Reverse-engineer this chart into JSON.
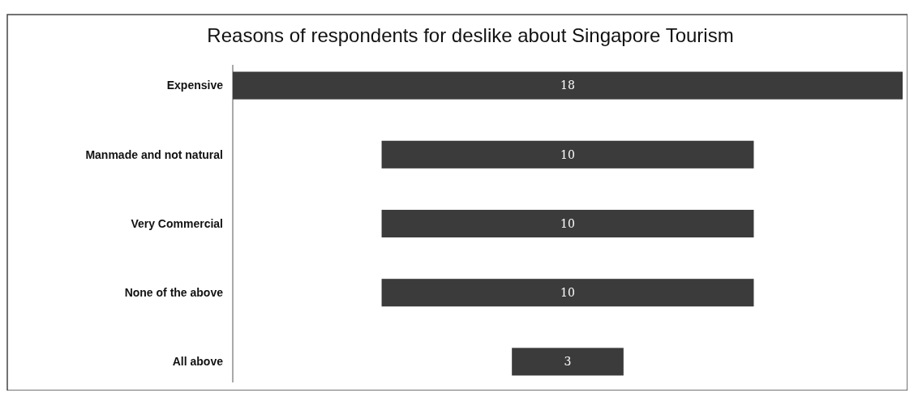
{
  "chart_data": {
    "type": "other",
    "title": "Reasons of respondents for deslike about Singapore Tourism",
    "categories": [
      "Expensive",
      "Manmade and not natural",
      "Very Commercial",
      "None of the above",
      "All above"
    ],
    "values": [
      18,
      10,
      10,
      10,
      3
    ],
    "color": "#3b3b3b",
    "data_labels": true
  }
}
